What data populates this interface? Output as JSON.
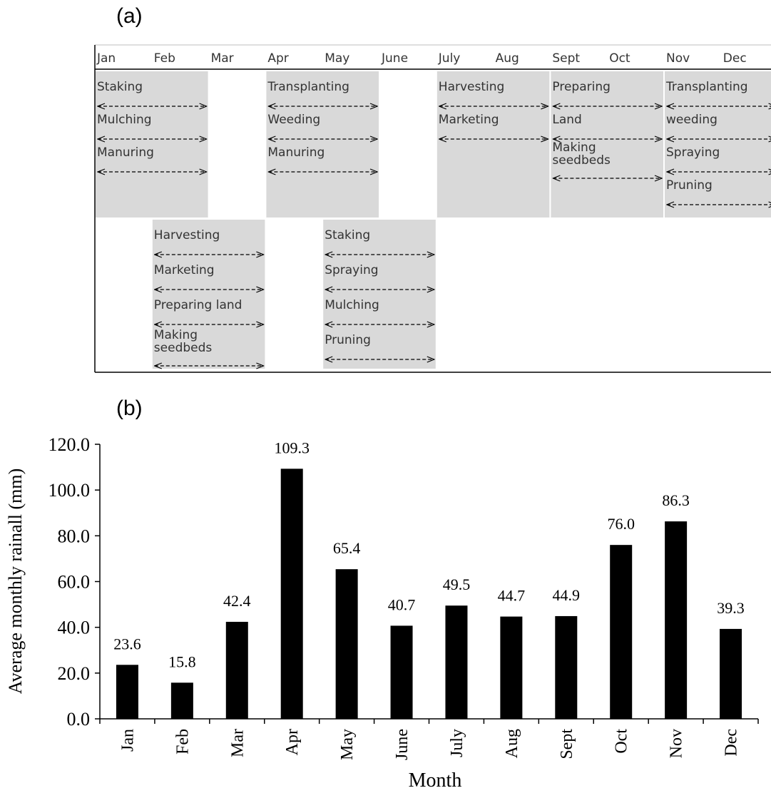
{
  "panel_a_label": "(a)",
  "panel_b_label": "(b)",
  "calendar": {
    "months": [
      "Jan",
      "Feb",
      "Mar",
      "Apr",
      "May",
      "June",
      "July",
      "Aug",
      "Sept",
      "Oct",
      "Nov",
      "Dec"
    ],
    "blocks": [
      {
        "start_month": 1,
        "end_month": 2,
        "row": "upper",
        "activities": [
          "Staking",
          "Mulching",
          "Manuring"
        ]
      },
      {
        "start_month": 4,
        "end_month": 5,
        "row": "upper",
        "activities": [
          "Transplanting",
          "Weeding",
          "Manuring"
        ]
      },
      {
        "start_month": 7,
        "end_month": 8,
        "row": "upper",
        "activities": [
          "Harvesting",
          "Marketing"
        ]
      },
      {
        "start_month": 9,
        "end_month": 10,
        "row": "upper",
        "activities": [
          "Preparing",
          "Land",
          "Making seedbeds"
        ]
      },
      {
        "start_month": 11,
        "end_month": 12,
        "row": "upper",
        "activities": [
          "Transplanting",
          "weeding",
          "Spraying",
          "Pruning"
        ]
      },
      {
        "start_month": 2,
        "end_month": 3,
        "row": "lower",
        "activities": [
          "Harvesting",
          "Marketing",
          "Preparing land",
          "Making seedbeds"
        ]
      },
      {
        "start_month": 5,
        "end_month": 6,
        "row": "lower",
        "activities": [
          "Staking",
          "Spraying",
          "Mulching",
          "Pruning"
        ]
      }
    ],
    "colors": {
      "block_fill": "#d9d9d9",
      "text": "#333333",
      "line": "#000000"
    }
  },
  "chart_data": {
    "type": "bar",
    "categories": [
      "Jan",
      "Feb",
      "Mar",
      "Apr",
      "May",
      "June",
      "July",
      "Aug",
      "Sept",
      "Oct",
      "Nov",
      "Dec"
    ],
    "values": [
      23.6,
      15.8,
      42.4,
      109.3,
      65.4,
      40.7,
      49.5,
      44.7,
      44.9,
      76.0,
      86.3,
      39.3
    ],
    "data_labels": [
      "23.6",
      "15.8",
      "42.4",
      "109.3",
      "65.4",
      "40.7",
      "49.5",
      "44.7",
      "44.9",
      "76.0",
      "86.3",
      "39.3"
    ],
    "title": "",
    "xlabel": "Month",
    "ylabel": "Average  monthly  rainall  (mm)",
    "ylim": [
      0,
      120
    ],
    "yticks": [
      "0.0",
      "20.0",
      "40.0",
      "60.0",
      "80.0",
      "100.0",
      "120.0"
    ],
    "grid": false,
    "bar_color": "#000000"
  }
}
